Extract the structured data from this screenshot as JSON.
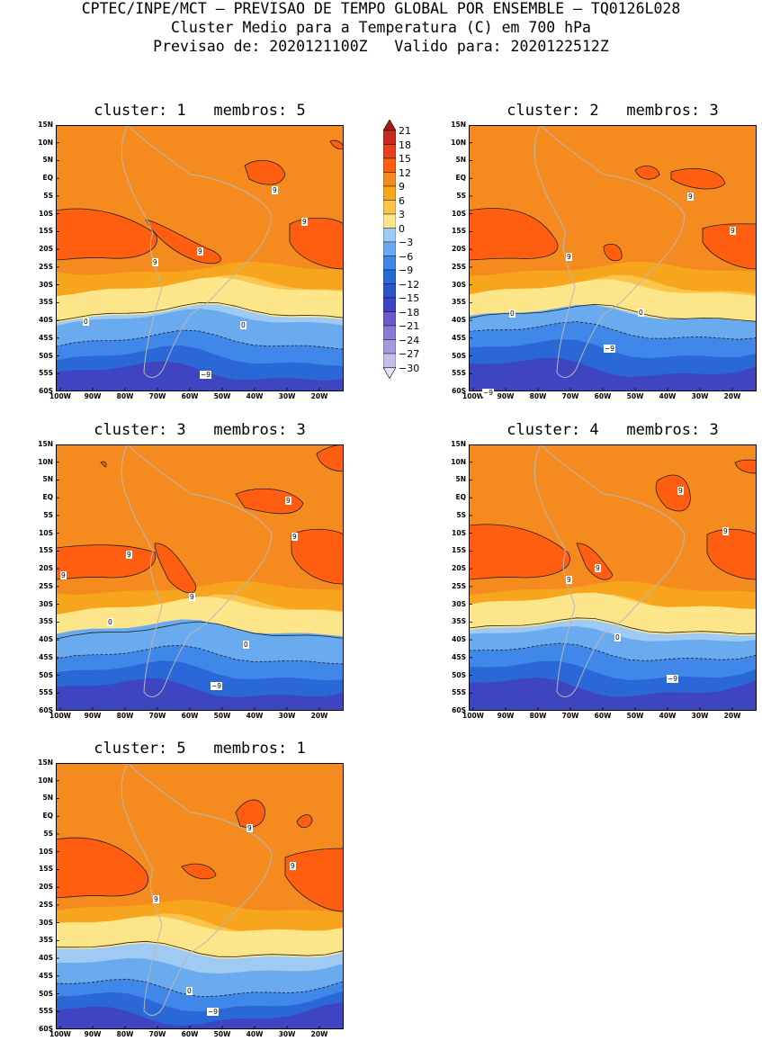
{
  "header": {
    "line1": "CPTEC/INPE/MCT — PREVISAO DE TEMPO GLOBAL POR ENSEMBLE — TQ0126L028",
    "line2": "Cluster Medio para a Temperatura (C) em 700 hPa",
    "line3": "Previsao de: 2020121100Z   Valido para: 2020122512Z"
  },
  "colorbar": {
    "levels": [
      "21",
      "18",
      "15",
      "12",
      "9",
      "6",
      "3",
      "0",
      "−3",
      "−6",
      "−9",
      "−12",
      "−15",
      "−18",
      "−21",
      "−24",
      "−27",
      "−30"
    ],
    "colors": [
      "#a51b1b",
      "#c92a1f",
      "#e8401c",
      "#ff5e10",
      "#f58b1e",
      "#f8a51e",
      "#fcc44a",
      "#fde68a",
      "#9fcaf3",
      "#6aabf0",
      "#3f87e8",
      "#2a68d8",
      "#2a55c8",
      "#3f44c0",
      "#6a5acd",
      "#8a7ad8",
      "#a898e0",
      "#c8bcec",
      "#e6e0f6"
    ]
  },
  "axes": {
    "lat_labels": [
      "15N",
      "10N",
      "5N",
      "EQ",
      "5S",
      "10S",
      "15S",
      "20S",
      "25S",
      "30S",
      "35S",
      "40S",
      "45S",
      "50S",
      "55S",
      "60S"
    ],
    "lon_labels": [
      "100W",
      "90W",
      "80W",
      "70W",
      "60W",
      "50W",
      "40W",
      "30W",
      "20W"
    ]
  },
  "clusters": [
    {
      "title": "cluster: 1   membros: 5",
      "labels": [
        {
          "t": "9",
          "x": 240,
          "y": 68
        },
        {
          "t": "9",
          "x": 273,
          "y": 103
        },
        {
          "t": "9",
          "x": 157,
          "y": 136
        },
        {
          "t": "9",
          "x": 107,
          "y": 148
        },
        {
          "t": "0",
          "x": 30,
          "y": 214
        },
        {
          "t": "0",
          "x": 205,
          "y": 218
        },
        {
          "t": "−9",
          "x": 160,
          "y": 273
        }
      ]
    },
    {
      "title": "cluster: 2   membros: 3",
      "labels": [
        {
          "t": "9",
          "x": 243,
          "y": 75
        },
        {
          "t": "9",
          "x": 290,
          "y": 113
        },
        {
          "t": "9",
          "x": 108,
          "y": 142
        },
        {
          "t": "0",
          "x": 45,
          "y": 205
        },
        {
          "t": "0",
          "x": 188,
          "y": 204
        },
        {
          "t": "−9",
          "x": 150,
          "y": 244
        },
        {
          "t": "−9",
          "x": 15,
          "y": 293
        }
      ]
    },
    {
      "title": "cluster: 3   membros: 3",
      "labels": [
        {
          "t": "9",
          "x": 255,
          "y": 58
        },
        {
          "t": "9",
          "x": 262,
          "y": 98
        },
        {
          "t": "9",
          "x": 78,
          "y": 118
        },
        {
          "t": "9",
          "x": 5,
          "y": 141
        },
        {
          "t": "9",
          "x": 148,
          "y": 165
        },
        {
          "t": "0",
          "x": 57,
          "y": 193
        },
        {
          "t": "0",
          "x": 208,
          "y": 218
        },
        {
          "t": "−9",
          "x": 172,
          "y": 264
        }
      ]
    },
    {
      "title": "cluster: 4   membros: 3",
      "labels": [
        {
          "t": "9",
          "x": 232,
          "y": 47
        },
        {
          "t": "9",
          "x": 282,
          "y": 92
        },
        {
          "t": "9",
          "x": 140,
          "y": 133
        },
        {
          "t": "9",
          "x": 108,
          "y": 146
        },
        {
          "t": "0",
          "x": 162,
          "y": 210
        },
        {
          "t": "−9",
          "x": 220,
          "y": 256
        }
      ]
    },
    {
      "title": "cluster: 5   membros: 1",
      "labels": [
        {
          "t": "9",
          "x": 212,
          "y": 68
        },
        {
          "t": "9",
          "x": 260,
          "y": 110
        },
        {
          "t": "9",
          "x": 108,
          "y": 147
        },
        {
          "t": "0",
          "x": 145,
          "y": 249
        },
        {
          "t": "−9",
          "x": 168,
          "y": 272
        }
      ]
    }
  ]
}
